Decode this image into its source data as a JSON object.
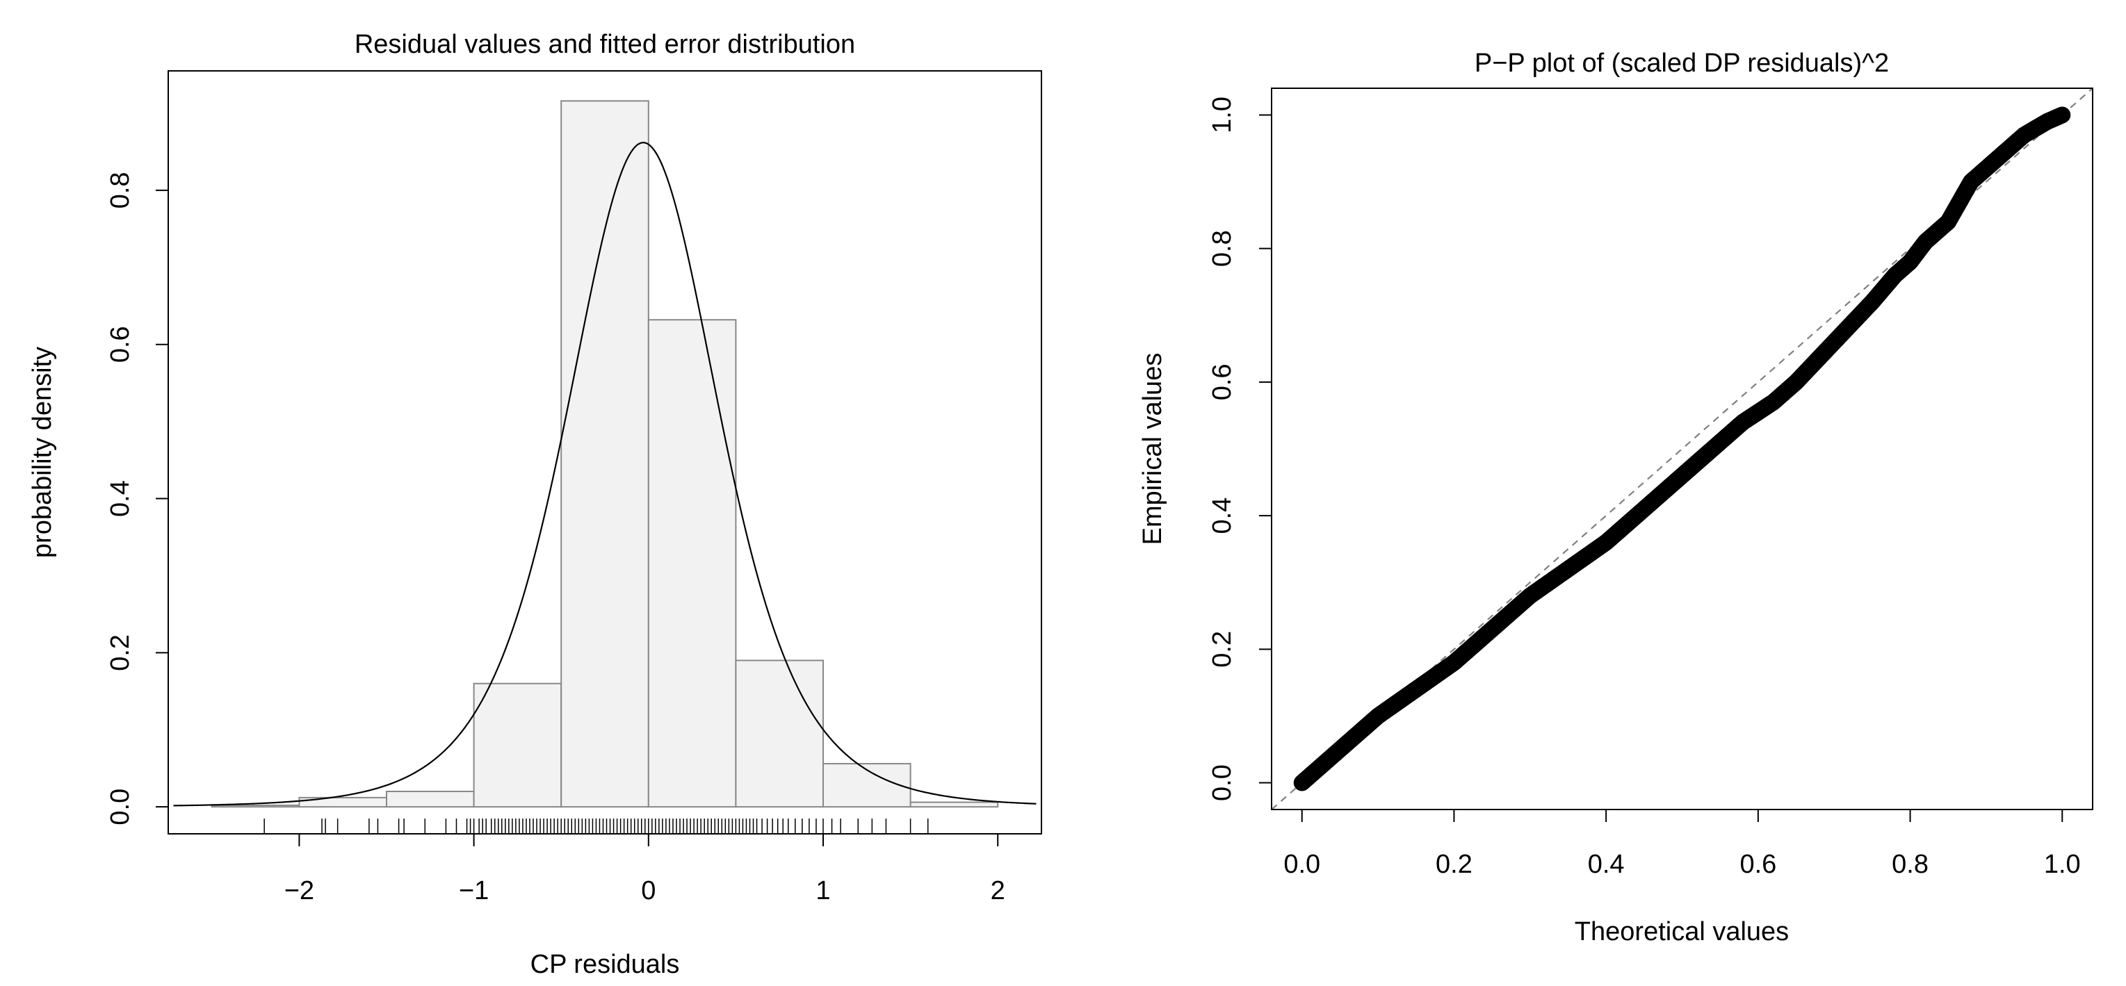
{
  "chart_data": [
    {
      "type": "bar",
      "subtype": "histogram-with-density",
      "title": "Residual values and fitted error distribution",
      "xlabel": "CP residuals",
      "ylabel": "probability density",
      "xlim": [
        -2.75,
        2.25
      ],
      "ylim": [
        -0.035,
        0.955
      ],
      "x_ticks": [
        -2,
        -1,
        0,
        1,
        2
      ],
      "x_tick_labels": [
        "−2",
        "−1",
        "0",
        "1",
        "2"
      ],
      "y_ticks": [
        0.0,
        0.2,
        0.4,
        0.6,
        0.8
      ],
      "y_tick_labels": [
        "0.0",
        "0.2",
        "0.4",
        "0.6",
        "0.8"
      ],
      "bins": [
        {
          "x0": -2.5,
          "x1": -2.0,
          "density": 0.002
        },
        {
          "x0": -2.0,
          "x1": -1.5,
          "density": 0.012
        },
        {
          "x0": -1.5,
          "x1": -1.0,
          "density": 0.02
        },
        {
          "x0": -1.0,
          "x1": -0.5,
          "density": 0.16
        },
        {
          "x0": -0.5,
          "x1": 0.0,
          "density": 0.916
        },
        {
          "x0": 0.0,
          "x1": 0.5,
          "density": 0.632
        },
        {
          "x0": 0.5,
          "x1": 1.0,
          "density": 0.19
        },
        {
          "x0": 1.0,
          "x1": 1.5,
          "density": 0.056
        },
        {
          "x0": 1.5,
          "x1": 2.0,
          "density": 0.006
        }
      ],
      "density_curve": {
        "x_range": [
          -2.72,
          2.22
        ],
        "peak_x": -0.03,
        "peak_y": 0.862,
        "spread": 0.45,
        "shape": 5
      },
      "rug": [
        -2.2,
        -1.87,
        -1.85,
        -1.78,
        -1.6,
        -1.55,
        -1.43,
        -1.4,
        -1.28,
        -1.16,
        -1.1,
        -1.04,
        -1.02,
        -1.0,
        -0.97,
        -0.95,
        -0.93,
        -0.9,
        -0.88,
        -0.86,
        -0.84,
        -0.82,
        -0.8,
        -0.78,
        -0.76,
        -0.74,
        -0.72,
        -0.7,
        -0.68,
        -0.66,
        -0.64,
        -0.62,
        -0.6,
        -0.58,
        -0.56,
        -0.54,
        -0.52,
        -0.5,
        -0.48,
        -0.46,
        -0.44,
        -0.42,
        -0.4,
        -0.38,
        -0.36,
        -0.34,
        -0.32,
        -0.3,
        -0.28,
        -0.26,
        -0.24,
        -0.22,
        -0.2,
        -0.18,
        -0.16,
        -0.14,
        -0.12,
        -0.1,
        -0.08,
        -0.06,
        -0.04,
        -0.02,
        0.0,
        0.02,
        0.04,
        0.06,
        0.08,
        0.1,
        0.12,
        0.14,
        0.16,
        0.18,
        0.2,
        0.22,
        0.24,
        0.26,
        0.28,
        0.3,
        0.32,
        0.34,
        0.36,
        0.38,
        0.4,
        0.42,
        0.44,
        0.46,
        0.48,
        0.5,
        0.52,
        0.54,
        0.56,
        0.58,
        0.6,
        0.62,
        0.65,
        0.68,
        0.71,
        0.74,
        0.77,
        0.8,
        0.84,
        0.88,
        0.92,
        0.96,
        1.0,
        1.05,
        1.1,
        1.2,
        1.28,
        1.36,
        1.5,
        1.6
      ]
    },
    {
      "type": "scatter",
      "title": "P−P plot of (scaled DP residuals)^2",
      "xlabel": "Theoretical values",
      "ylabel": "Empirical values",
      "xlim": [
        -0.04,
        1.04
      ],
      "ylim": [
        -0.04,
        1.04
      ],
      "x_ticks": [
        0.0,
        0.2,
        0.4,
        0.6,
        0.8,
        1.0
      ],
      "x_tick_labels": [
        "0.0",
        "0.2",
        "0.4",
        "0.6",
        "0.8",
        "1.0"
      ],
      "y_ticks": [
        0.0,
        0.2,
        0.4,
        0.6,
        0.8,
        1.0
      ],
      "y_tick_labels": [
        "0.0",
        "0.2",
        "0.4",
        "0.6",
        "0.8",
        "1.0"
      ],
      "reference_line": {
        "slope": 1,
        "intercept": 0,
        "style": "dashed",
        "color": "#808080"
      },
      "series": [
        {
          "x": [
            0.0,
            0.02,
            0.05,
            0.08,
            0.1,
            0.15,
            0.2,
            0.25,
            0.3,
            0.35,
            0.4,
            0.45,
            0.5,
            0.55,
            0.58,
            0.62,
            0.65,
            0.7,
            0.75,
            0.78,
            0.8,
            0.82,
            0.85,
            0.88,
            0.9,
            0.93,
            0.95,
            0.98,
            1.0
          ],
          "y": [
            0.0,
            0.02,
            0.05,
            0.08,
            0.1,
            0.14,
            0.18,
            0.23,
            0.28,
            0.32,
            0.36,
            0.41,
            0.46,
            0.51,
            0.54,
            0.57,
            0.6,
            0.66,
            0.72,
            0.76,
            0.78,
            0.81,
            0.84,
            0.9,
            0.92,
            0.95,
            0.97,
            0.99,
            1.0
          ]
        }
      ]
    }
  ]
}
